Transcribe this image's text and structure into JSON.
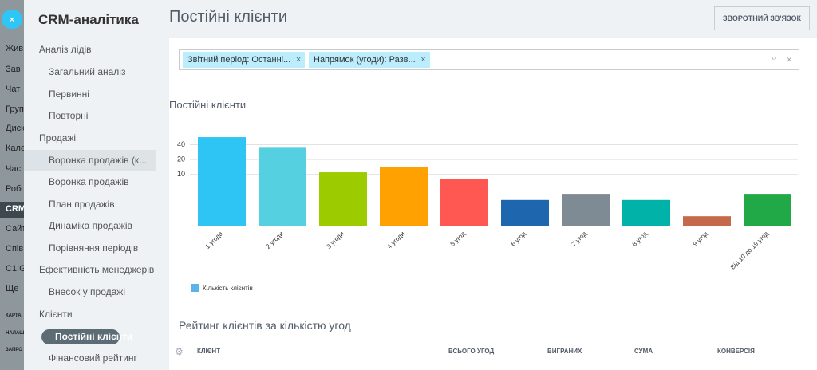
{
  "left_nav": {
    "items": [
      "Жив",
      "Зав",
      "Чат",
      "Груп",
      "Диск",
      "Кале",
      "Час",
      "Робо",
      "CRM",
      "Сайт",
      "Спів",
      "C1:G",
      "Ще"
    ],
    "footer": [
      "КАРТА",
      "НАЛАШ",
      "ЗАПРО"
    ]
  },
  "sidebar": {
    "title": "CRM-аналітика",
    "groups": [
      {
        "title": "Аналіз лідів",
        "items": [
          "Загальний аналіз",
          "Первинні",
          "Повторні"
        ]
      },
      {
        "title": "Продажі",
        "items": [
          "Воронка продажів (к...",
          "Воронка продажів",
          "План продажів",
          "Динаміка продажів",
          "Порівняння періодів"
        ]
      },
      {
        "title": "Ефективність менеджерів",
        "items": [
          "Внесок у продажі"
        ]
      },
      {
        "title": "Клієнти",
        "items": [
          "Постійні клієнти",
          "Фінансовий рейтинг"
        ]
      }
    ]
  },
  "header": {
    "title": "Постійні клієнти",
    "button": "ЗВОРОТНИЙ ЗВ'ЯЗОК"
  },
  "filter": {
    "tags": [
      "Звітний період: Останні...",
      "Напрямок (угоди): Разв..."
    ]
  },
  "chart_data": {
    "type": "bar",
    "title": "Постійні клієнти",
    "categories": [
      "1 угода",
      "2 угоди",
      "3 угоди",
      "4 угоди",
      "5 угод",
      "6 угод",
      "7 угод",
      "8 угод",
      "9 угод",
      "Від 10 до 19 угод"
    ],
    "series": [
      {
        "name": "Кількість клієнтів",
        "color": "#5cb3e6",
        "values": [
          57,
          36,
          11,
          14,
          8,
          3,
          4,
          3,
          1.4,
          4
        ]
      }
    ],
    "bar_colors": [
      "#2ec5f5",
      "#55d0e0",
      "#9ccc00",
      "#ffa100",
      "#ff5752",
      "#1e67ae",
      "#7e8a94",
      "#00b2a7",
      "#c5694a",
      "#21a947"
    ],
    "log_scale": true,
    "ylim": [
      0.9,
      80
    ],
    "yticks": [
      10,
      20,
      40
    ],
    "grid": true
  },
  "table": {
    "title": "Рейтинг клієнтів за кількістю угод",
    "columns": [
      "КЛІЄНТ",
      "ВСЬОГО УГОД",
      "ВИГРАНИХ",
      "СУМА",
      "КОНВЕРСІЯ"
    ]
  }
}
